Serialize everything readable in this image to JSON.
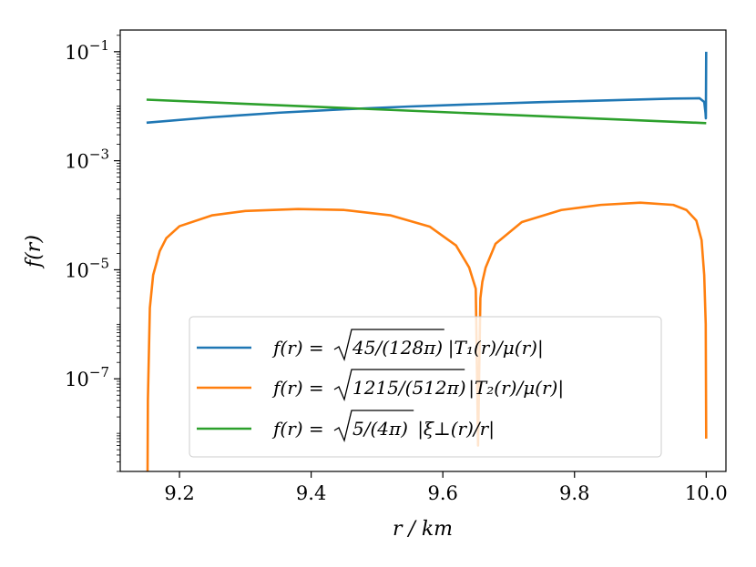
{
  "chart_data": {
    "type": "line",
    "xlabel": "r / km",
    "ylabel": "f(r)",
    "xlim": [
      9.11,
      10.03
    ],
    "ylim": [
      2e-09,
      0.25
    ],
    "yscale": "log",
    "grid": false,
    "legend_position": "lower-center",
    "x_ticks": [
      {
        "value": 9.2,
        "label": "9.2"
      },
      {
        "value": 9.4,
        "label": "9.4"
      },
      {
        "value": 9.6,
        "label": "9.6"
      },
      {
        "value": 9.8,
        "label": "9.8"
      },
      {
        "value": 10.0,
        "label": "10.0"
      }
    ],
    "y_ticks": [
      {
        "value": 0.1,
        "base": "10",
        "exp": "−1"
      },
      {
        "value": 0.001,
        "base": "10",
        "exp": "−3"
      },
      {
        "value": 1e-05,
        "base": "10",
        "exp": "−5"
      },
      {
        "value": 1e-07,
        "base": "10",
        "exp": "−7"
      }
    ],
    "series": [
      {
        "name": "f(r) = √(45/(128π)) |T₁(r)/μ(r)|",
        "legend": {
          "lhs": "f(r) =",
          "root": "45/(128π)",
          "rest": "|T₁(r)/μ(r)|"
        },
        "color": "#1f77b4",
        "x": [
          9.15,
          9.25,
          9.35,
          9.45,
          9.55,
          9.65,
          9.75,
          9.85,
          9.95,
          9.99,
          9.997,
          9.999,
          9.9995,
          10.0
        ],
        "y": [
          0.005,
          0.0063,
          0.0076,
          0.0088,
          0.0099,
          0.0109,
          0.0119,
          0.0128,
          0.0138,
          0.014,
          0.012,
          0.0075,
          0.006,
          0.1
        ]
      },
      {
        "name": "f(r) = √(1215/(512π)) |T₂(r)/μ(r)|",
        "legend": {
          "lhs": "f(r) =",
          "root": "1215/(512π)",
          "rest": "|T₂(r)/μ(r)|"
        },
        "color": "#ff7f0e",
        "x": [
          9.1515,
          9.152,
          9.155,
          9.16,
          9.17,
          9.18,
          9.2,
          9.25,
          9.3,
          9.38,
          9.45,
          9.52,
          9.58,
          9.62,
          9.64,
          9.65,
          9.6535,
          9.657,
          9.66,
          9.665,
          9.68,
          9.72,
          9.78,
          9.84,
          9.9,
          9.95,
          9.97,
          9.985,
          9.993,
          9.997,
          9.9993,
          10.0
        ],
        "y": [
          2e-09,
          4e-08,
          2e-06,
          8e-06,
          2.2e-05,
          3.8e-05,
          6.3e-05,
          0.0001,
          0.00012,
          0.00013,
          0.000125,
          0.0001,
          6.2e-05,
          2.8e-05,
          1.1e-05,
          4.5e-06,
          6e-09,
          3e-06,
          6e-06,
          1.1e-05,
          3e-05,
          7.5e-05,
          0.000125,
          0.000155,
          0.00017,
          0.000155,
          0.000125,
          8e-05,
          3.5e-05,
          8e-06,
          1e-06,
          8e-09
        ]
      },
      {
        "name": "f(r) = √(5/(4π)) |ξ⊥(r)/r|",
        "legend": {
          "lhs": "f(r) =",
          "root": "5/(4π)",
          "rest": "|ξ⊥(r)/r|"
        },
        "color": "#2ca02c",
        "x": [
          9.15,
          10.0
        ],
        "y": [
          0.0132,
          0.0049
        ]
      }
    ]
  }
}
